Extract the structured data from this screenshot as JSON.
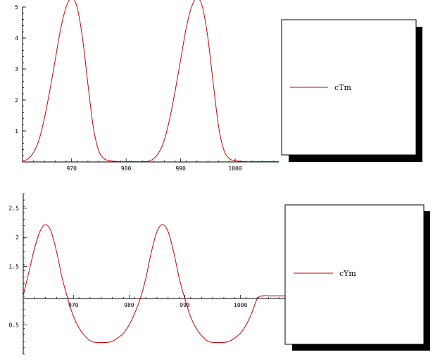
{
  "chart_data": [
    {
      "type": "line",
      "xlim": [
        961,
        1008
      ],
      "ylim": [
        0,
        5
      ],
      "x_ticks": [
        {
          "value": 970,
          "label": "970"
        },
        {
          "value": 980,
          "label": "980"
        },
        {
          "value": 990,
          "label": "990"
        },
        {
          "value": 1000,
          "label": "1000"
        }
      ],
      "y_ticks": [
        {
          "value": 1,
          "label": "1"
        },
        {
          "value": 2,
          "label": "2"
        },
        {
          "value": 3,
          "label": "3"
        },
        {
          "value": 4,
          "label": "4"
        },
        {
          "value": 5,
          "label": "5"
        }
      ],
      "legend": {
        "placement": "right",
        "label": "cTm"
      },
      "grid": false,
      "series": [
        {
          "name": "cTm",
          "color": "#cc0000",
          "x": [
            961,
            962,
            963,
            964,
            965,
            966,
            967,
            968,
            969,
            970,
            971,
            972,
            973,
            974,
            975,
            976,
            977,
            978,
            979,
            980,
            981,
            982,
            983,
            984,
            985,
            986,
            987,
            988,
            989,
            990,
            991,
            992,
            993,
            994,
            995,
            996,
            997,
            998,
            999,
            1000,
            1001,
            1002,
            1003,
            1004,
            1005,
            1006,
            1007,
            1008
          ],
          "y": [
            0.02,
            0.1,
            0.3,
            0.7,
            1.4,
            2.3,
            3.3,
            4.3,
            5.0,
            5.3,
            5.0,
            4.0,
            2.5,
            1.1,
            0.35,
            0.1,
            0.04,
            0.02,
            0.01,
            0.01,
            0.01,
            0.01,
            0.01,
            0.02,
            0.1,
            0.3,
            0.7,
            1.4,
            2.3,
            3.3,
            4.3,
            5.0,
            5.3,
            5.0,
            4.0,
            2.5,
            1.1,
            0.35,
            0.1,
            0.04,
            0.02,
            0.01,
            0.01,
            0.01,
            0.01,
            0.01,
            0.01,
            0.01
          ]
        }
      ]
    },
    {
      "type": "line",
      "xlim": [
        961,
        1008
      ],
      "ylim": [
        0,
        2.75
      ],
      "x_axis_at": 1,
      "x_ticks": [
        {
          "value": 970,
          "label": "970"
        },
        {
          "value": 980,
          "label": "980"
        },
        {
          "value": 990,
          "label": "990"
        },
        {
          "value": 1000,
          "label": "1000"
        }
      ],
      "y_ticks": [
        {
          "value": 0.5,
          "label": "0.5"
        },
        {
          "value": 1.5,
          "label": "1.5"
        },
        {
          "value": 2,
          "label": "2"
        },
        {
          "value": 2.5,
          "label": "2.5"
        }
      ],
      "legend": {
        "placement": "right",
        "label": "cYm"
      },
      "grid": false,
      "series": [
        {
          "name": "cYm",
          "color": "#cc0000",
          "x": [
            961,
            962,
            963,
            964,
            965,
            966,
            967,
            968,
            969,
            970,
            971,
            972,
            973,
            974,
            975,
            976,
            977,
            978,
            979,
            980,
            981,
            982,
            983,
            984,
            985,
            986,
            987,
            988,
            989,
            990,
            991,
            992,
            993,
            994,
            995,
            996,
            997,
            998,
            999,
            1000,
            1001,
            1002,
            1003,
            1004,
            1005,
            1006,
            1007,
            1008
          ],
          "y": [
            1.0,
            1.4,
            1.8,
            2.1,
            2.22,
            2.1,
            1.75,
            1.3,
            0.95,
            0.65,
            0.45,
            0.32,
            0.23,
            0.2,
            0.2,
            0.2,
            0.22,
            0.28,
            0.36,
            0.5,
            0.7,
            0.95,
            1.3,
            1.75,
            2.1,
            2.22,
            2.1,
            1.75,
            1.3,
            0.95,
            0.65,
            0.45,
            0.32,
            0.23,
            0.2,
            0.2,
            0.2,
            0.22,
            0.28,
            0.36,
            0.5,
            0.7,
            0.95,
            1.0,
            1.0,
            1.0,
            1.0,
            1.0
          ]
        }
      ]
    }
  ]
}
